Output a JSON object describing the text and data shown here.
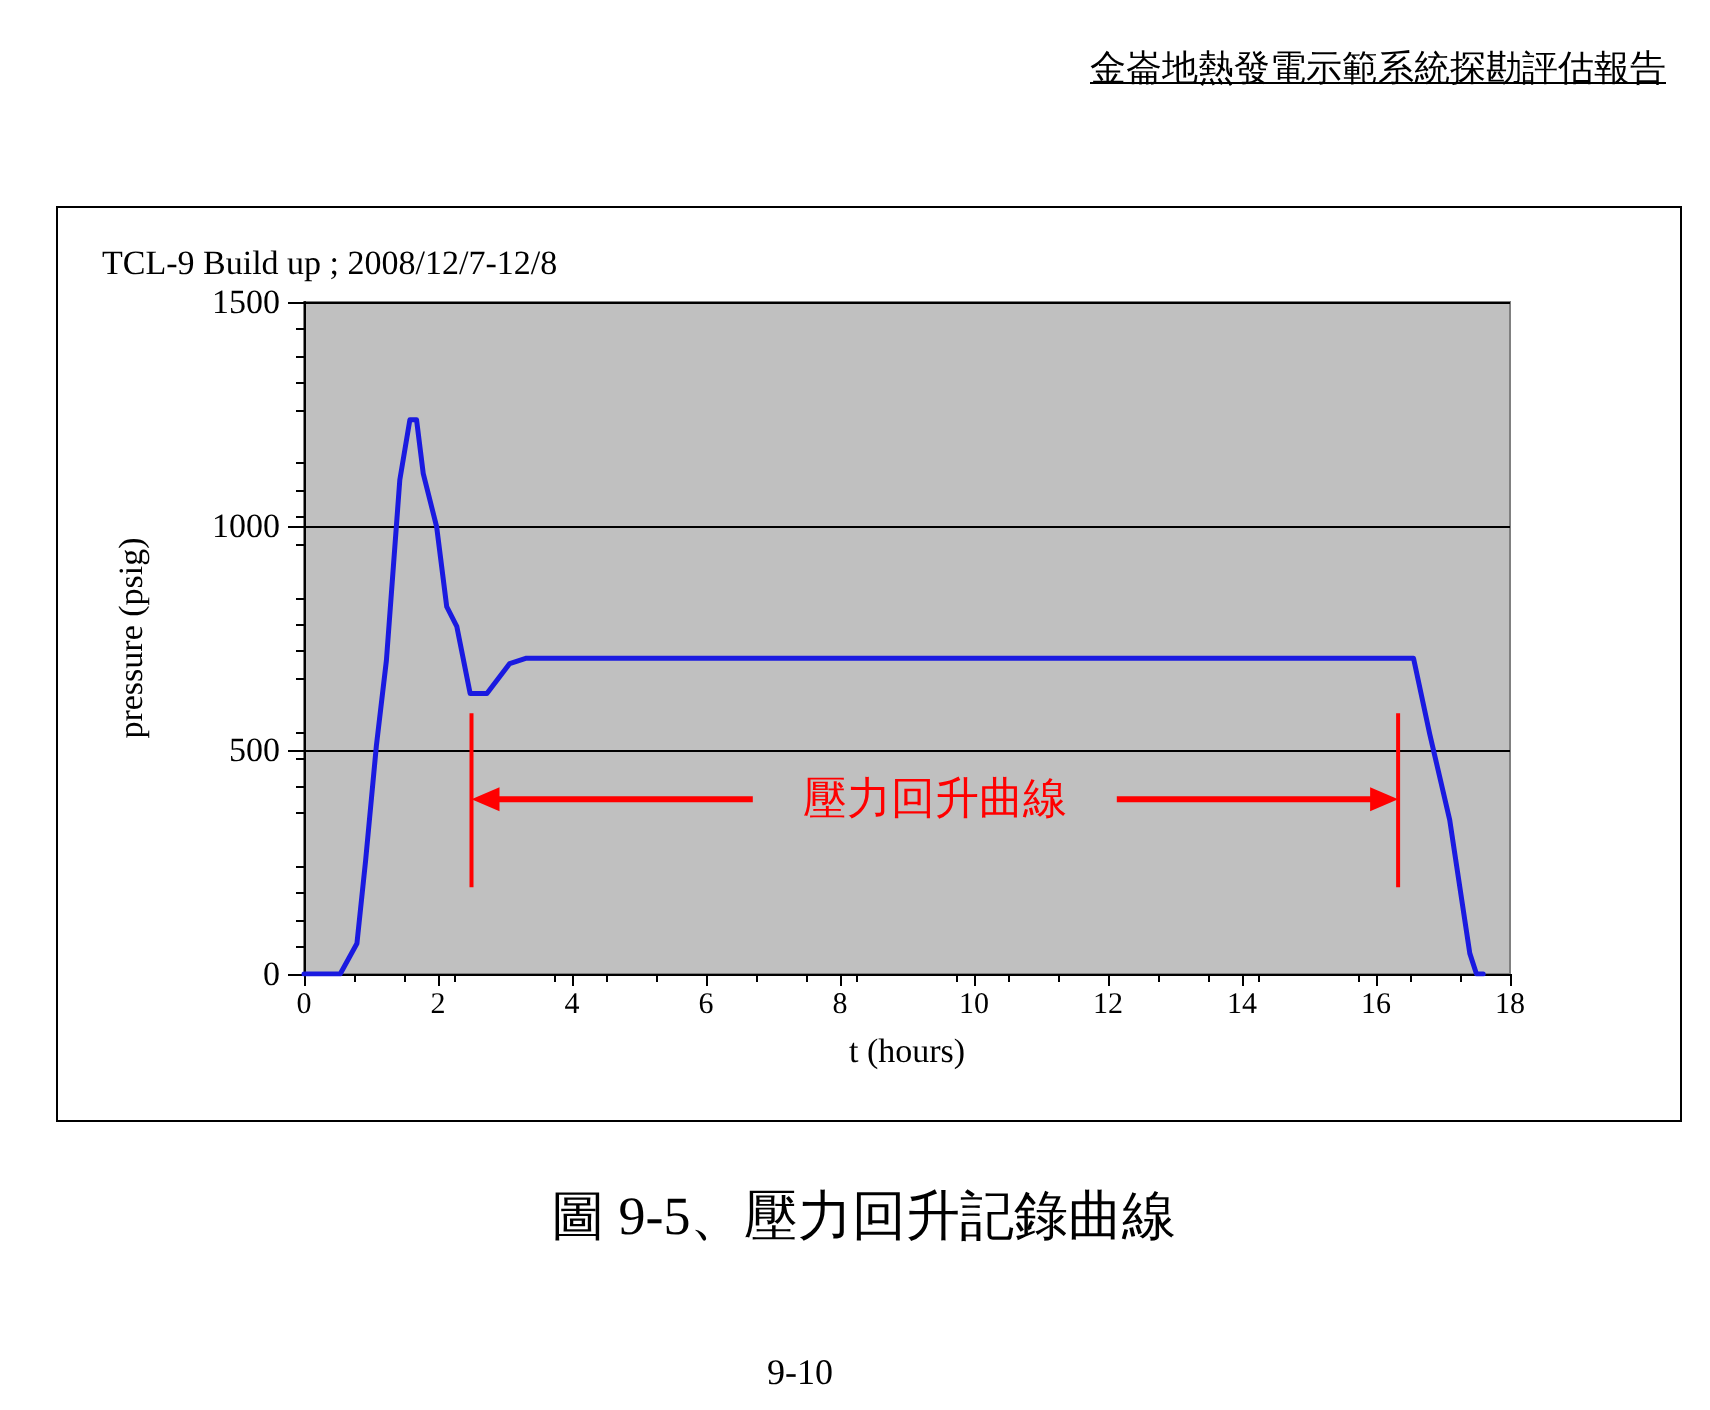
{
  "chart_data": {
    "type": "line",
    "title": "TCL-9 Build up ; 2008/12/7-12/8",
    "xlabel": "t (hours)",
    "ylabel": "pressure (psig)",
    "annotations": [
      "金崙地熱發電示範系統探勘評估報告",
      "圖 9-5、壓力回升記錄曲線",
      "9-10",
      "壓力回升曲線"
    ],
    "series": [
      {
        "color": "#1a1ae0",
        "x": [
          0,
          0.54,
          0.79,
          0.92,
          1.08,
          1.23,
          1.43,
          1.58,
          1.68,
          1.78,
          1.98,
          2.13,
          2.28,
          2.48,
          2.73,
          3.07,
          3.32,
          16.56,
          16.8,
          17.1,
          17.4,
          17.5,
          17.6
        ],
        "values": [
          0,
          0,
          68,
          254,
          509,
          700,
          1103,
          1237,
          1237,
          1117,
          998,
          820,
          776,
          626,
          626,
          693,
          705,
          705,
          537,
          344,
          46,
          0,
          0
        ]
      }
    ],
    "xlim": [
      0,
      18
    ],
    "xticks": [
      0,
      2,
      4,
      6,
      8,
      10,
      12,
      14,
      16,
      18
    ],
    "ylim": [
      0,
      1500
    ],
    "yticks": [
      0,
      500,
      1000,
      1500
    ],
    "grid": "y",
    "marker": "none",
    "line_style": "solid",
    "ref_lines": [
      {
        "axis": "x",
        "value": 2.5,
        "color": "#ff0000"
      },
      {
        "axis": "x",
        "value": 16.33,
        "color": "#ff0000"
      }
    ]
  }
}
